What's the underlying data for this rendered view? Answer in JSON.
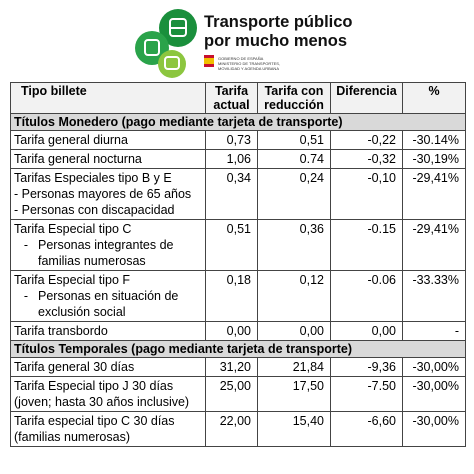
{
  "header": {
    "title": [
      "Transporte público",
      "por mucho menos"
    ],
    "ministry": [
      "GOBIERNO DE ESPAÑA",
      "MINISTERIO DE TRANSPORTES, MOVILIDAD Y AGENDA URBANA"
    ]
  },
  "table": {
    "columns": [
      "Tipo billete",
      "Tarifa actual",
      "Tarifa con reducción",
      "Diferencia",
      "%"
    ],
    "rows": [
      {
        "section": "Títulos Monedero (pago mediante tarjeta de transporte)"
      },
      {
        "label": "Tarifa general diurna",
        "values": [
          "0,73",
          "0,51",
          "-0,22",
          "-30.14%"
        ]
      },
      {
        "label": "Tarifa general nocturna",
        "values": [
          "1,06",
          "0.74",
          "-0,32",
          "-30,19%"
        ]
      },
      {
        "label": "Tarifas Especiales tipo B y E",
        "lines": [
          "- Personas mayores de 65 años",
          "- Personas con discapacidad"
        ],
        "values": [
          "0,34",
          "0,24",
          "-0,10",
          "-29,41%"
        ]
      },
      {
        "label": "Tarifa Especial tipo C",
        "items": [
          {
            "bullet": "-",
            "text": "Personas integrantes de familias numerosas"
          }
        ],
        "values": [
          "0,51",
          "0,36",
          "-0.15",
          "-29,41%"
        ]
      },
      {
        "label": "Tarifa Especial tipo F",
        "items": [
          {
            "bullet": "-",
            "text": "Personas en situación de exclusión social"
          }
        ],
        "values": [
          "0,18",
          "0,12",
          "-0.06",
          "-33.33%"
        ]
      },
      {
        "label": "Tarifa transbordo",
        "values": [
          "0,00",
          "0,00",
          "0,00",
          "-"
        ]
      },
      {
        "section": "Títulos Temporales (pago mediante tarjeta de transporte)"
      },
      {
        "label": "Tarifa general 30 días",
        "values": [
          "31,20",
          "21,84",
          "-9,36",
          "-30,00%"
        ]
      },
      {
        "label": "Tarifa Especial tipo J 30 días (joven; hasta 30 años inclusive)",
        "values": [
          "25,00",
          "17,50",
          "-7.50",
          "-30,00%"
        ]
      },
      {
        "label": "Tarifa especial tipo C 30 días (familias numerosas)",
        "values": [
          "22,00",
          "15,40",
          "-6,60",
          "-30,00%"
        ]
      }
    ]
  }
}
